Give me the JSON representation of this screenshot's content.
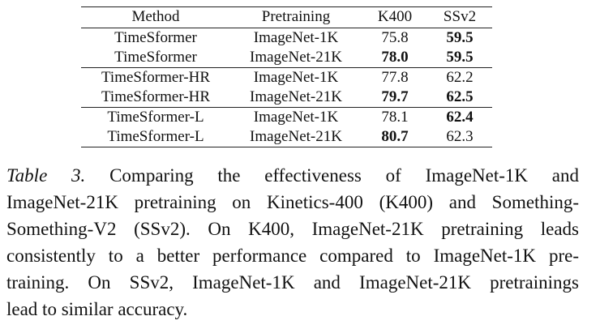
{
  "table": {
    "header": [
      "Method",
      "Pretraining",
      "K400",
      "SSv2"
    ],
    "groups": [
      [
        [
          {
            "text": "TimeSformer"
          },
          {
            "text": "ImageNet-1K"
          },
          {
            "text": "75.8"
          },
          {
            "text": "59.5",
            "bold": true
          }
        ],
        [
          {
            "text": "TimeSformer"
          },
          {
            "text": "ImageNet-21K"
          },
          {
            "text": "78.0",
            "bold": true
          },
          {
            "text": "59.5",
            "bold": true
          }
        ]
      ],
      [
        [
          {
            "text": "TimeSformer-HR"
          },
          {
            "text": "ImageNet-1K"
          },
          {
            "text": "77.8"
          },
          {
            "text": "62.2"
          }
        ],
        [
          {
            "text": "TimeSformer-HR"
          },
          {
            "text": "ImageNet-21K"
          },
          {
            "text": "79.7",
            "bold": true
          },
          {
            "text": "62.5",
            "bold": true
          }
        ]
      ],
      [
        [
          {
            "text": "TimeSformer-L"
          },
          {
            "text": "ImageNet-1K"
          },
          {
            "text": "78.1"
          },
          {
            "text": "62.4",
            "bold": true
          }
        ],
        [
          {
            "text": "TimeSformer-L"
          },
          {
            "text": "ImageNet-21K"
          },
          {
            "text": "80.7",
            "bold": true
          },
          {
            "text": "62.3"
          }
        ]
      ]
    ]
  },
  "caption": {
    "label": "Table 3.",
    "lines": [
      "Comparing the effectiveness of ImageNet-1K and",
      "ImageNet-21K pretraining on Kinetics-400 (K400) and Something-",
      "Something-V2 (SSv2). On K400, ImageNet-21K pretraining leads",
      "consistently to a better performance compared to ImageNet-1K pre-",
      "training. On SSv2, ImageNet-1K and ImageNet-21K pretrainings",
      "lead to similar accuracy."
    ]
  }
}
